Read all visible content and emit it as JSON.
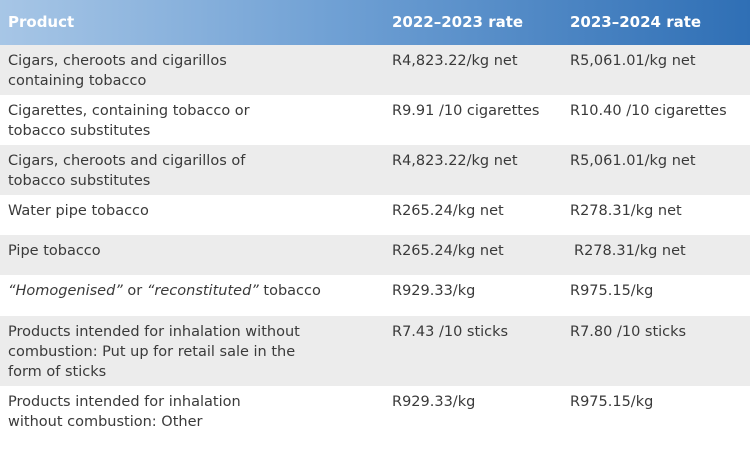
{
  "header": {
    "product": "Product",
    "rate_2022": "2022–2023 rate",
    "rate_2023": "2023–2024 rate"
  },
  "rows": [
    {
      "product_line1": "Cigars, cheroots and cigarillos",
      "product_line2": "containing tobacco",
      "rate_2022": "R4,823.22/kg net",
      "rate_2023": "R5,061.01/kg net"
    },
    {
      "product_line1": "Cigarettes, containing tobacco or",
      "product_line2": "tobacco substitutes",
      "rate_2022": "R9.91 /10 cigarettes",
      "rate_2023": "R10.40 /10 cigarettes"
    },
    {
      "product_line1": "Cigars, cheroots and cigarillos of",
      "product_line2": "tobacco substitutes",
      "rate_2022": "R4,823.22/kg net",
      "rate_2023": "R5,061.01/kg net"
    },
    {
      "product_line1": "Water pipe tobacco",
      "rate_2022": "R265.24/kg net",
      "rate_2023": "R278.31/kg net"
    },
    {
      "product_line1": "Pipe tobacco",
      "rate_2022": "R265.24/kg net",
      "rate_2023": "R278.31/kg net"
    },
    {
      "product_quote1": "“Homogenised”",
      "product_or": " or ",
      "product_quote2": "“reconstituted”",
      "product_tail": " tobacco",
      "rate_2022": "R929.33/kg",
      "rate_2023": "R975.15/kg"
    },
    {
      "product_line1": "Products intended for inhalation without",
      "product_line2": "combustion: Put up for retail sale in the",
      "product_line3": "form of sticks",
      "rate_2022": "R7.43 /10 sticks",
      "rate_2023": "R7.80 /10 sticks"
    },
    {
      "product_line1": "Products intended for inhalation",
      "product_line2": "without combustion: Other",
      "rate_2022": "R929.33/kg",
      "rate_2023": "R975.15/kg"
    }
  ]
}
